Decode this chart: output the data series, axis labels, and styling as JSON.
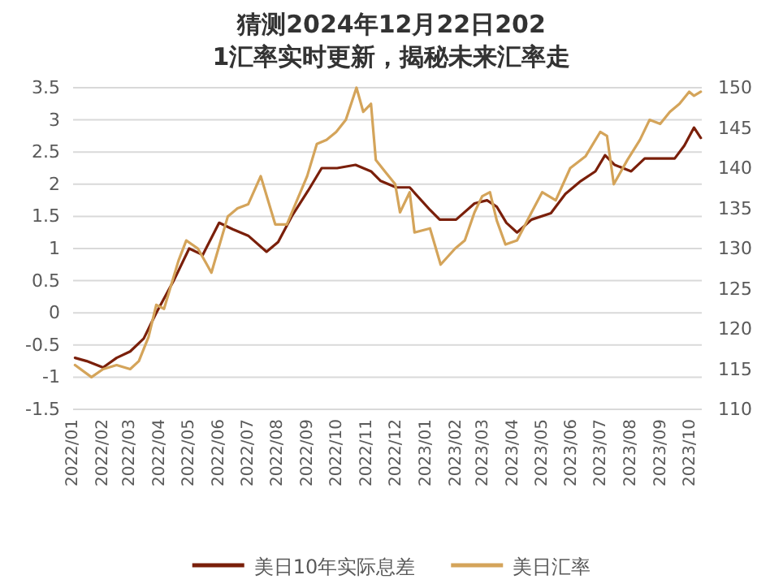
{
  "chart_data": {
    "type": "line",
    "title": "猜测2024年12月22日2021汇率实时更新，揭秘未来汇率走",
    "xlim": [
      "2022-01-01",
      "2023-10-13"
    ],
    "xticks": [
      {
        "value": "2022-01",
        "label": "2022/01"
      },
      {
        "value": "2022-02",
        "label": "2022/02"
      },
      {
        "value": "2022-03",
        "label": "2022/03"
      },
      {
        "value": "2022-04",
        "label": "2022/04"
      },
      {
        "value": "2022-05",
        "label": "2022/05"
      },
      {
        "value": "2022-06",
        "label": "2022/06"
      },
      {
        "value": "2022-07",
        "label": "2022/07"
      },
      {
        "value": "2022-08",
        "label": "2022/08"
      },
      {
        "value": "2022-09",
        "label": "2022/09"
      },
      {
        "value": "2022-10",
        "label": "2022/10"
      },
      {
        "value": "2022-11",
        "label": "2022/11"
      },
      {
        "value": "2022-12",
        "label": "2022/12"
      },
      {
        "value": "2023-01",
        "label": "2023/01"
      },
      {
        "value": "2023-02",
        "label": "2023/02"
      },
      {
        "value": "2023-03",
        "label": "2023/03"
      },
      {
        "value": "2023-04",
        "label": "2023/04"
      },
      {
        "value": "2023-05",
        "label": "2023/05"
      },
      {
        "value": "2023-06",
        "label": "2023/06"
      },
      {
        "value": "2023-07",
        "label": "2023/07"
      },
      {
        "value": "2023-08",
        "label": "2023/08"
      },
      {
        "value": "2023-09",
        "label": "2023/09"
      },
      {
        "value": "2023-10",
        "label": "2023/10"
      }
    ],
    "ylim": [
      -1.5,
      3.5
    ],
    "yticks": [
      -1.5,
      -1,
      -0.5,
      0,
      0.5,
      1,
      1.5,
      2,
      2.5,
      3,
      3.5
    ],
    "y2lim": [
      110,
      150
    ],
    "y2ticks": [
      110,
      115,
      120,
      125,
      130,
      135,
      140,
      145,
      150
    ],
    "grid": "y",
    "legend": "bottom",
    "marker": "none",
    "line_style": "solid",
    "series": [
      {
        "name": "美日10年实际息差",
        "color": "#7a1f0a",
        "x": [
          "2022-01-03",
          "2022-01-15",
          "2022-02-01",
          "2022-02-15",
          "2022-03-01",
          "2022-03-15",
          "2022-03-28",
          "2022-04-15",
          "2022-05-01",
          "2022-05-15",
          "2022-06-01",
          "2022-06-15",
          "2022-07-01",
          "2022-07-20",
          "2022-08-01",
          "2022-08-15",
          "2022-09-01",
          "2022-09-15",
          "2022-10-01",
          "2022-10-20",
          "2022-11-05",
          "2022-11-15",
          "2022-12-01",
          "2022-12-15",
          "2023-01-05",
          "2023-01-15",
          "2023-02-01",
          "2023-02-20",
          "2023-03-05",
          "2023-03-15",
          "2023-03-25",
          "2023-04-05",
          "2023-04-20",
          "2023-05-10",
          "2023-05-25",
          "2023-06-10",
          "2023-06-25",
          "2023-07-05",
          "2023-07-15",
          "2023-08-01",
          "2023-08-15",
          "2023-09-01",
          "2023-09-15",
          "2023-09-25",
          "2023-10-05",
          "2023-10-12"
        ],
        "values": [
          -0.7,
          -0.75,
          -0.85,
          -0.7,
          -0.6,
          -0.4,
          0,
          0.5,
          1,
          0.9,
          1.4,
          1.3,
          1.2,
          0.95,
          1.1,
          1.5,
          1.9,
          2.25,
          2.25,
          2.3,
          2.2,
          2.05,
          1.95,
          1.95,
          1.6,
          1.45,
          1.45,
          1.7,
          1.75,
          1.65,
          1.4,
          1.25,
          1.45,
          1.55,
          1.85,
          2.05,
          2.2,
          2.45,
          2.3,
          2.2,
          2.4,
          2.4,
          2.4,
          2.6,
          2.88,
          2.72
        ]
      },
      {
        "name": "美日汇率",
        "color": "#d4a45a",
        "axis": "y2",
        "x": [
          "2022-01-03",
          "2022-01-20",
          "2022-02-01",
          "2022-02-15",
          "2022-03-01",
          "2022-03-10",
          "2022-03-20",
          "2022-03-28",
          "2022-04-05",
          "2022-04-20",
          "2022-04-28",
          "2022-05-10",
          "2022-05-24",
          "2022-06-10",
          "2022-06-20",
          "2022-07-01",
          "2022-07-14",
          "2022-07-29",
          "2022-08-10",
          "2022-08-31",
          "2022-09-10",
          "2022-09-20",
          "2022-09-30",
          "2022-10-10",
          "2022-10-21",
          "2022-10-28",
          "2022-11-05",
          "2022-11-10",
          "2022-11-20",
          "2022-11-30",
          "2022-12-05",
          "2022-12-15",
          "2022-12-20",
          "2023-01-05",
          "2023-01-16",
          "2023-01-31",
          "2023-02-10",
          "2023-02-20",
          "2023-02-28",
          "2023-03-08",
          "2023-03-15",
          "2023-03-24",
          "2023-04-05",
          "2023-04-20",
          "2023-05-01",
          "2023-05-15",
          "2023-05-30",
          "2023-06-15",
          "2023-06-30",
          "2023-07-07",
          "2023-07-14",
          "2023-07-28",
          "2023-08-10",
          "2023-08-20",
          "2023-08-31",
          "2023-09-10",
          "2023-09-20",
          "2023-09-30",
          "2023-10-05",
          "2023-10-12"
        ],
        "values": [
          115.5,
          114,
          115,
          115.5,
          115,
          116,
          119,
          123,
          122.5,
          128.5,
          131,
          130,
          127,
          134,
          135,
          135.5,
          139,
          133,
          133,
          139,
          143,
          143.5,
          144.5,
          146,
          150,
          147,
          148,
          141,
          139.5,
          138,
          134.5,
          137,
          132,
          132.5,
          128,
          130,
          131,
          134.5,
          136.5,
          137,
          133.5,
          130.5,
          131,
          134.5,
          137,
          136,
          140,
          141.5,
          144.5,
          144,
          138,
          141,
          143.5,
          146,
          145.5,
          147,
          148,
          149.5,
          149,
          149.5
        ]
      }
    ]
  }
}
